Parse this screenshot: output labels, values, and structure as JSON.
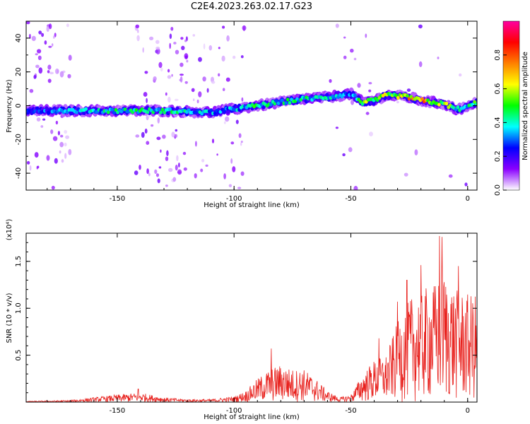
{
  "title": "C2E4.2023.263.02.17.G23",
  "chart_data": [
    {
      "type": "heatmap",
      "xlabel": "Height of straight line (km)",
      "ylabel": "Frequency (Hz)",
      "xlim": [
        -189,
        4
      ],
      "ylim": [
        -50,
        50
      ],
      "x_ticks": [
        "-150",
        "-100",
        "-50",
        "0"
      ],
      "x_tick_values": [
        -150,
        -100,
        -50,
        0
      ],
      "y_ticks": [
        "-40",
        "-20",
        "0",
        "20",
        "40"
      ],
      "y_tick_values": [
        -40,
        -20,
        0,
        20,
        40
      ],
      "colorbar": {
        "label": "Normalized spectral amplitude",
        "range": [
          0,
          1
        ],
        "ticks": [
          "0.0",
          "0.2",
          "0.4",
          "0.6",
          "0.8"
        ],
        "tick_values": [
          0.0,
          0.2,
          0.4,
          0.6,
          0.8
        ],
        "colors": [
          "#ffffff",
          "#8a00ff",
          "#0000ff",
          "#00ffff",
          "#00ff00",
          "#ffff00",
          "#ff8000",
          "#ff0000",
          "#ff00a0"
        ]
      },
      "ridge": {
        "x": [
          -189,
          -170,
          -150,
          -130,
          -110,
          -100,
          -90,
          -80,
          -70,
          -60,
          -55,
          -50,
          -45,
          -40,
          -35,
          -32,
          -25,
          -20,
          -15,
          -10,
          -5,
          0,
          4
        ],
        "y": [
          -3,
          -3,
          -3,
          -3,
          -4,
          -2,
          0,
          2,
          4,
          5,
          6,
          7,
          2,
          3,
          6,
          6,
          5,
          3,
          2,
          1,
          -2,
          -1,
          2
        ],
        "peak_amplitude": [
          0.3,
          0.4,
          0.5,
          0.5,
          0.45,
          0.4,
          0.55,
          0.5,
          0.5,
          0.45,
          0.4,
          0.35,
          0.6,
          0.75,
          0.7,
          0.6,
          0.9,
          0.95,
          0.8,
          0.7,
          0.5,
          0.5,
          0.6
        ]
      }
    },
    {
      "type": "line",
      "xlabel": "Height of straight line (km)",
      "ylabel": "SNR (10 * v/v)",
      "y_scale_label": "(x10⁴)",
      "xlim": [
        -189,
        4
      ],
      "ylim": [
        0,
        1.8
      ],
      "x_ticks": [
        "-150",
        "-100",
        "-50",
        "0"
      ],
      "x_tick_values": [
        -150,
        -100,
        -50,
        0
      ],
      "y_ticks": [
        "0.5",
        "1.0",
        "1.5"
      ],
      "y_tick_values": [
        0.5,
        1.0,
        1.5
      ],
      "color": "#e8201c",
      "envelope": {
        "x": [
          -189,
          -170,
          -160,
          -150,
          -140,
          -130,
          -120,
          -110,
          -100,
          -95,
          -90,
          -85,
          -80,
          -75,
          -70,
          -65,
          -60,
          -55,
          -50,
          -45,
          -40,
          -35,
          -30,
          -25,
          -20,
          -15,
          -10,
          -5,
          0,
          4
        ],
        "y": [
          0.01,
          0.02,
          0.05,
          0.08,
          0.1,
          0.05,
          0.03,
          0.03,
          0.06,
          0.12,
          0.25,
          0.35,
          0.4,
          0.35,
          0.35,
          0.25,
          0.12,
          0.05,
          0.08,
          0.3,
          0.45,
          0.5,
          0.85,
          1.1,
          1.2,
          1.25,
          1.4,
          1.2,
          1.15,
          1.15
        ],
        "peaks": [
          {
            "x": -141,
            "y": 0.14
          },
          {
            "x": -84,
            "y": 0.57
          },
          {
            "x": -38,
            "y": 0.68
          },
          {
            "x": -30,
            "y": 1.07
          },
          {
            "x": -26,
            "y": 1.3
          },
          {
            "x": -20,
            "y": 1.46
          },
          {
            "x": -12,
            "y": 1.77
          },
          {
            "x": -11,
            "y": 1.76
          },
          {
            "x": -4,
            "y": 1.45
          }
        ]
      }
    }
  ]
}
